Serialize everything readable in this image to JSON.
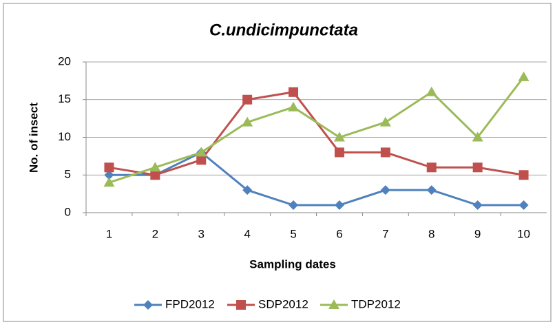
{
  "chart_data": {
    "type": "line",
    "title": "C.undicimpunctata",
    "x_label": "Sampling dates",
    "y_label": "No. of insect",
    "categories": [
      "1",
      "2",
      "3",
      "4",
      "5",
      "6",
      "7",
      "8",
      "9",
      "10"
    ],
    "series": [
      {
        "name": "FPD2012",
        "color": "#4F81BD",
        "marker": "diamond",
        "values": [
          5,
          5,
          8,
          3,
          1,
          1,
          3,
          3,
          1,
          1
        ]
      },
      {
        "name": "SDP2012",
        "color": "#C0504D",
        "marker": "square",
        "values": [
          6,
          5,
          7,
          15,
          16,
          8,
          8,
          6,
          6,
          5
        ]
      },
      {
        "name": "TDP2012",
        "color": "#9BBB59",
        "marker": "triangle",
        "values": [
          4,
          6,
          8,
          12,
          14,
          10,
          12,
          16,
          10,
          18
        ]
      }
    ],
    "ylim": [
      0,
      20
    ],
    "yticks": [
      0,
      5,
      10,
      15,
      20
    ],
    "grid": true,
    "legend": "bottom"
  }
}
